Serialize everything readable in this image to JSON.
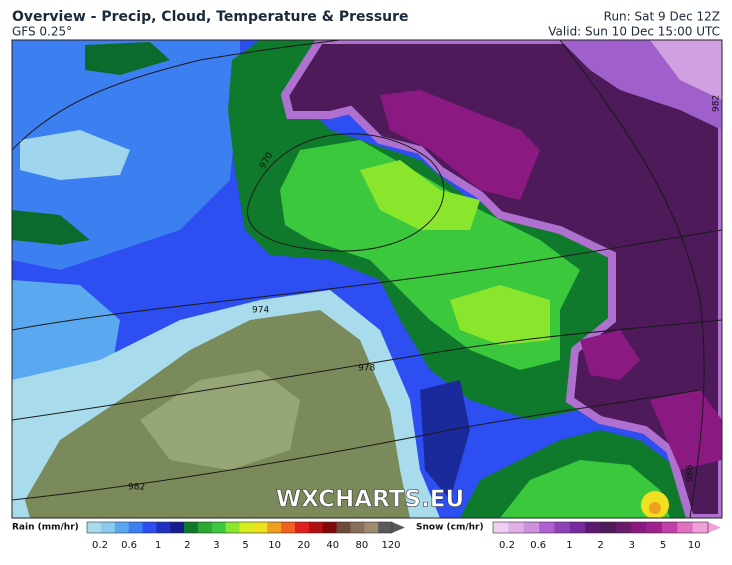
{
  "header": {
    "title": "Overview - Precip, Cloud, Temperature & Pressure",
    "model": "GFS 0.25°",
    "run": "Run: Sat 9 Dec 12Z",
    "valid": "Valid: Sun 10 Dec 15:00 UTC"
  },
  "map": {
    "isobars": [
      970,
      974,
      978,
      982,
      982,
      986
    ],
    "watermark": "WXCHARTS.EU"
  },
  "legend": {
    "rain": {
      "label": "Rain (mm/hr)",
      "ticks": [
        0.2,
        0.6,
        1,
        2,
        3,
        5,
        10,
        20,
        40,
        80,
        120
      ],
      "colors": [
        "#a8dcec",
        "#8ccbf0",
        "#5aa8f0",
        "#3c7ff0",
        "#2d4ef0",
        "#2030c0",
        "#1a1a90",
        "#0f7a2c",
        "#2aa832",
        "#3cc83c",
        "#8ae62c",
        "#d4ee20",
        "#f0e020",
        "#f0a020",
        "#f06020",
        "#e02020",
        "#b01010",
        "#800808",
        "#6e4a3a",
        "#8a6e5a",
        "#a08a70",
        "#5a5a5a"
      ]
    },
    "snow": {
      "label": "Snow (cm/hr)",
      "ticks": [
        0.2,
        0.6,
        1,
        2,
        3,
        5,
        10
      ],
      "colors": [
        "#f0d0f0",
        "#e0b0e8",
        "#d090e0",
        "#b060d0",
        "#9040b8",
        "#7a2aa0",
        "#5a1a70",
        "#4e1a5a",
        "#6a1a6a",
        "#8a1a82",
        "#a02090",
        "#c040a8",
        "#e070c0",
        "#f0a0d8"
      ]
    }
  }
}
